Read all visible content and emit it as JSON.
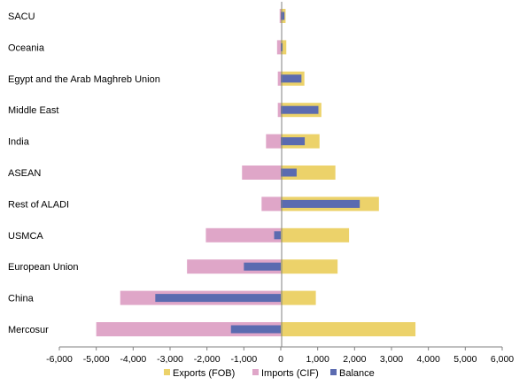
{
  "chart_data": {
    "type": "bar",
    "orientation": "horizontal",
    "categories": [
      "SACU",
      "Oceania",
      "Egypt and the Arab Maghreb Union",
      "Middle East",
      "India",
      "ASEAN",
      "Rest of ALADI",
      "USMCA",
      "European Union",
      "China",
      "Mercosur"
    ],
    "series": [
      {
        "name": "Exports (FOB)",
        "color": "#ecd26a",
        "values": [
          130,
          150,
          640,
          1100,
          1050,
          1480,
          2660,
          1850,
          1540,
          950,
          3650
        ]
      },
      {
        "name": "Imports (CIF)",
        "color": "#dfa6c8",
        "values": [
          -30,
          -100,
          -80,
          -80,
          -400,
          -1050,
          -520,
          -2030,
          -2540,
          -4350,
          -5000
        ]
      },
      {
        "name": "Balance",
        "color": "#5b6bb0",
        "values": [
          100,
          50,
          560,
          1020,
          650,
          430,
          2140,
          -180,
          -1000,
          -3400,
          -1350
        ]
      }
    ],
    "xticks": [
      "-6,000",
      "-5,000",
      "-4,000",
      "-3,000",
      "-2,000",
      "-1,000",
      "0",
      "1,000",
      "2,000",
      "3,000",
      "4,000",
      "5,000",
      "6,000"
    ],
    "xlim": [
      -6000,
      6000
    ],
    "title": "",
    "xlabel": "",
    "ylabel": "",
    "grid": false,
    "legend_position": "bottom"
  }
}
